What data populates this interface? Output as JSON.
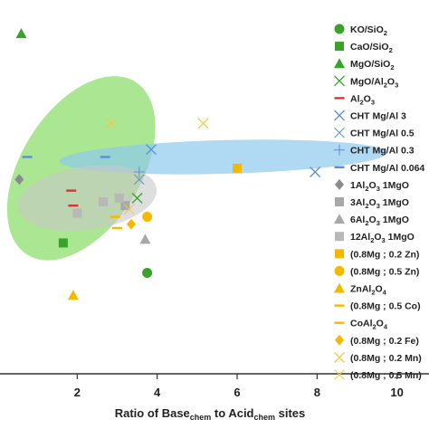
{
  "chart_data": {
    "type": "scatter",
    "xlabel": "Ratio of Base",
    "xlabel_sub1": "chem",
    "xlabel_mid": " to Acid",
    "xlabel_sub2": "chem",
    "xlabel_end": " sites",
    "xlim": [
      0,
      10.8
    ],
    "ylim": [
      0,
      1
    ],
    "x_ticks": [
      2,
      4,
      6,
      8,
      10
    ],
    "grid": false,
    "legend_position": "right",
    "ellipses": [
      {
        "cx": 2.1,
        "cy": 0.55,
        "rx": 2.55,
        "ry": 0.16,
        "angle": -58,
        "color": "#7ed957",
        "opacity": 0.65
      },
      {
        "cx": 5.65,
        "cy": 0.58,
        "rx": 4.1,
        "ry": 0.045,
        "angle": -1.5,
        "color": "#8ec9f0",
        "opacity": 0.7
      },
      {
        "cx": 2.25,
        "cy": 0.47,
        "rx": 1.75,
        "ry": 0.085,
        "angle": -8,
        "color": "#c8c8c8",
        "opacity": 0.6
      }
    ],
    "series": [
      {
        "name": "KO/SiO",
        "sub": "2",
        "sup": "",
        "marker": "circle",
        "color": "#3aa12a",
        "points": [
          [
            3.75,
            0.27
          ]
        ]
      },
      {
        "name": "CaO/SiO",
        "sub": "2",
        "sup": "",
        "marker": "square",
        "color": "#3aa12a",
        "points": [
          [
            1.65,
            0.35
          ]
        ]
      },
      {
        "name": "MgO/SiO",
        "sub": "2",
        "sup": "",
        "marker": "triangle",
        "color": "#3aa12a",
        "points": [
          [
            0.6,
            0.91
          ]
        ]
      },
      {
        "name": "MgO/Al",
        "sub": "2",
        "tail": "O",
        "sub2": "3",
        "marker": "x",
        "color": "#3aa12a",
        "points": [
          [
            3.5,
            0.47
          ]
        ]
      },
      {
        "name": "Al",
        "sub": "2",
        "tail": "O",
        "sub2": "3",
        "marker": "dash",
        "color": "#e03030",
        "points": [
          [
            1.85,
            0.49
          ],
          [
            1.9,
            0.45
          ]
        ]
      },
      {
        "name": "CHT Mg/Al 3",
        "marker": "x",
        "color": "#5b8ed6",
        "points": [
          [
            3.85,
            0.6
          ],
          [
            7.95,
            0.54
          ]
        ]
      },
      {
        "name": "CHT Mg/Al 0.5",
        "marker": "x-thin",
        "color": "#5b8ed6",
        "points": [
          [
            3.55,
            0.52
          ]
        ]
      },
      {
        "name": "CHT Mg/Al 0.3",
        "marker": "plus",
        "color": "#5b8ed6",
        "points": [
          [
            3.55,
            0.54
          ]
        ]
      },
      {
        "name": "CHT Mg/Al 0.064",
        "marker": "dash",
        "color": "#5b8ed6",
        "points": [
          [
            0.75,
            0.58
          ],
          [
            2.7,
            0.58
          ]
        ]
      },
      {
        "name": "1Al",
        "sub": "2",
        "tail": "O",
        "sub2": "3",
        "tail2": " 1MgO",
        "marker": "diamond",
        "color": "#8a8a8a",
        "points": [
          [
            0.55,
            0.52
          ]
        ]
      },
      {
        "name": "3Al",
        "sub": "2",
        "tail": "O",
        "sub2": "3",
        "tail2": " 1MgO",
        "marker": "square",
        "color": "#a8a8a8",
        "points": [
          [
            3.2,
            0.45
          ]
        ]
      },
      {
        "name": "6Al",
        "sub": "2",
        "tail": "O",
        "sub2": "3",
        "tail2": " 1MgO",
        "marker": "triangle",
        "color": "#a8a8a8",
        "points": [
          [
            3.7,
            0.36
          ]
        ]
      },
      {
        "name": "12Al",
        "sub": "2",
        "tail": "O",
        "sub2": "3",
        "tail2": " 1MgO",
        "marker": "square",
        "color": "#b8b8b8",
        "points": [
          [
            2.65,
            0.46
          ],
          [
            2.0,
            0.43
          ],
          [
            3.05,
            0.47
          ]
        ]
      },
      {
        "name": "(0.8Mg ; 0.2 Zn)",
        "marker": "square",
        "color": "#f5b800",
        "points": [
          [
            6.0,
            0.55
          ]
        ]
      },
      {
        "name": "(0.8Mg ; 0.5 Zn)",
        "marker": "circle",
        "color": "#f5b800",
        "points": [
          [
            3.75,
            0.42
          ]
        ]
      },
      {
        "name": "ZnAl",
        "sub": "2",
        "tail": "O",
        "sub2": "4",
        "marker": "triangle",
        "color": "#f5b800",
        "points": [
          [
            1.9,
            0.21
          ]
        ]
      },
      {
        "name": "(0.8Mg ; 0.5 Co)",
        "marker": "dash",
        "color": "#f5b800",
        "points": [
          [
            3.0,
            0.39
          ]
        ]
      },
      {
        "name": "CoAl",
        "sub": "2",
        "tail": "O",
        "sub2": "4",
        "marker": "dash",
        "color": "#f5b800",
        "points": [
          [
            2.95,
            0.42
          ]
        ]
      },
      {
        "name": "(0.8Mg ; 0.2 Fe)",
        "marker": "diamond",
        "color": "#f5b800",
        "points": [
          [
            3.35,
            0.4
          ]
        ]
      },
      {
        "name": "(0.8Mg ; 0.2 Mn)",
        "marker": "x",
        "color": "#f5c842",
        "points": [
          [
            2.85,
            0.67
          ],
          [
            5.15,
            0.67
          ]
        ]
      },
      {
        "name": "(0.8Mg ; 0.5 Mn)",
        "marker": "x-thin",
        "color": "#f5c842",
        "points": [
          [
            3.3,
            0.44
          ]
        ]
      }
    ]
  }
}
